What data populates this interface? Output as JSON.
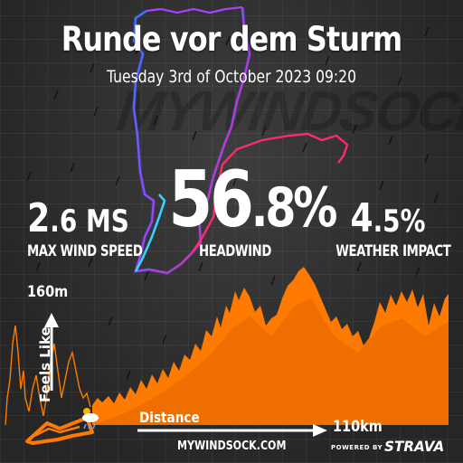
{
  "activity": {
    "title": "Runde vor dem Sturm",
    "datetime": "Tuesday 3rd of October 2023 09:20"
  },
  "watermark": "MYWINDSOCK",
  "stats": {
    "max_wind_speed": {
      "big": "2",
      "small": ".6 MS",
      "label": "MAX WIND SPEED"
    },
    "headwind": {
      "big": "56",
      "small": ".8%",
      "label": "HEADWIND"
    },
    "weather_impact": {
      "big": "4",
      "small": ".5%",
      "label": "WEATHER IMPACT"
    }
  },
  "elevation": {
    "max_label": "160m",
    "y_axis_label": "Feels Like",
    "x_axis_label": "Distance",
    "distance_label": "110km",
    "max_value": 160,
    "total_distance_km": 110
  },
  "footer": {
    "site": "MYWINDSOCK.COM",
    "powered_by": "POWERED BY",
    "brand": "STRAVA"
  },
  "colors": {
    "elevation_fill": "#ff7a00",
    "route_start": "#3a78ff",
    "route_mid": "#aa40ff",
    "route_end": "#ff2a6a",
    "route_cyan": "#3ad0ff",
    "background": "#2b2b2b"
  },
  "icons": {
    "weather": "cloud-sun-rain-icon",
    "bike": "bike-icon"
  }
}
